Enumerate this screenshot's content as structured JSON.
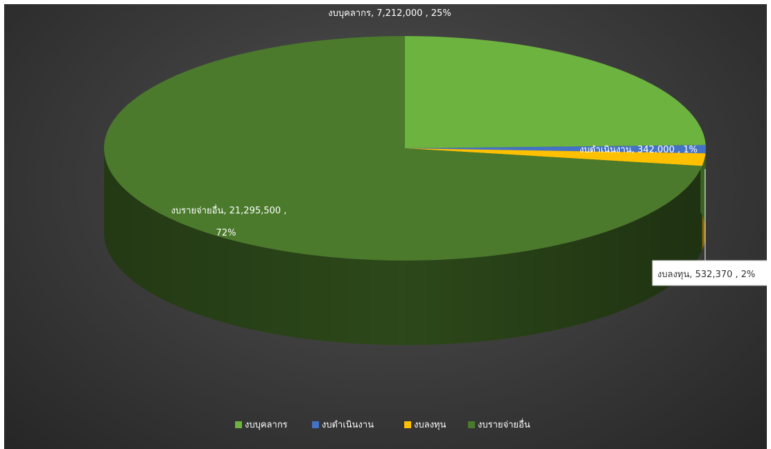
{
  "chart_data": {
    "type": "pie",
    "title": "",
    "three_d": true,
    "legend_position": "bottom",
    "slices": [
      {
        "label": "งบบุคลากร",
        "value": 7212000,
        "value_text": "7,212,000",
        "percent_text": "25%",
        "color": "#6db33f"
      },
      {
        "label": "งบดำเนินงาน",
        "value": 342000,
        "value_text": "342,000",
        "percent_text": "1%",
        "color": "#4472c4"
      },
      {
        "label": "งบลงทุน",
        "value": 532370,
        "value_text": "532,370",
        "percent_text": "2%",
        "color": "#ffc000"
      },
      {
        "label": "งบรายจ่ายอื่น",
        "value": 21295500,
        "value_text": "21,295,500",
        "percent_text": "72%",
        "color": "#4b7a2c"
      }
    ]
  }
}
